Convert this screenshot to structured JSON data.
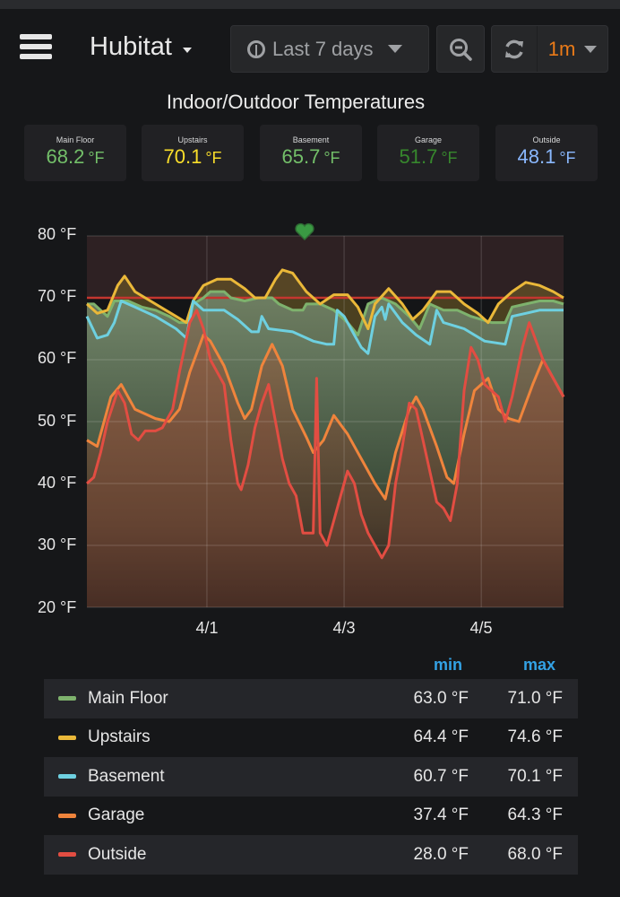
{
  "header": {
    "menu_icon": "hamburger-menu-icon",
    "dashboard_title": "Hubitat",
    "time_range": "Last 7 days",
    "time_icon": "clock-icon",
    "zoom_out_icon": "zoom-out-icon",
    "refresh_icon": "refresh-icon",
    "refresh_interval": "1m"
  },
  "panel": {
    "title": "Indoor/Outdoor Temperatures",
    "health_icon": "heart-icon"
  },
  "stats": [
    {
      "label": "Main Floor",
      "value": "68.2",
      "unit": "°F",
      "color": "#73bf69"
    },
    {
      "label": "Upstairs",
      "value": "70.1",
      "unit": "°F",
      "color": "#fade2a"
    },
    {
      "label": "Basement",
      "value": "65.7",
      "unit": "°F",
      "color": "#73bf69"
    },
    {
      "label": "Garage",
      "value": "51.7",
      "unit": "°F",
      "color": "#37872d"
    },
    {
      "label": "Outside",
      "value": "48.1",
      "unit": "°F",
      "color": "#8ab8ff"
    }
  ],
  "legend": {
    "columns": {
      "min": "min",
      "max": "max"
    },
    "rows": [
      {
        "name": "Main Floor",
        "color": "#7eb26d",
        "min": "63.0 °F",
        "max": "71.0 °F"
      },
      {
        "name": "Upstairs",
        "color": "#eab839",
        "min": "64.4 °F",
        "max": "74.6 °F"
      },
      {
        "name": "Basement",
        "color": "#6ed0e0",
        "min": "60.7 °F",
        "max": "70.1 °F"
      },
      {
        "name": "Garage",
        "color": "#ef843c",
        "min": "37.4 °F",
        "max": "64.3 °F"
      },
      {
        "name": "Outside",
        "color": "#e24d42",
        "min": "28.0 °F",
        "max": "68.0 °F"
      }
    ]
  },
  "chart_data": {
    "type": "line",
    "title": "Indoor/Outdoor Temperatures",
    "xlabel": "",
    "ylabel": "",
    "ylim": [
      20,
      80
    ],
    "y_ticks": [
      "80 °F",
      "70 °F",
      "60 °F",
      "50 °F",
      "40 °F",
      "30 °F",
      "20 °F"
    ],
    "x_ticks": [
      {
        "label": "4/1",
        "pos": 1.75
      },
      {
        "label": "4/3",
        "pos": 3.75
      },
      {
        "label": "4/5",
        "pos": 5.75
      }
    ],
    "x_range_days": [
      0,
      6.95
    ],
    "grid": true,
    "threshold": {
      "value": 70,
      "color": "#c4362f",
      "fill_above": "#2e2123"
    },
    "legend_position": "bottom",
    "series": [
      {
        "name": "Main Floor",
        "color": "#7eb26d",
        "points": [
          [
            0,
            69
          ],
          [
            0.1,
            69
          ],
          [
            0.2,
            68
          ],
          [
            0.3,
            67
          ],
          [
            0.4,
            69.5
          ],
          [
            0.6,
            69.5
          ],
          [
            0.8,
            68.5
          ],
          [
            1.0,
            68
          ],
          [
            1.2,
            67
          ],
          [
            1.35,
            66
          ],
          [
            1.45,
            66
          ],
          [
            1.55,
            69
          ],
          [
            1.7,
            70
          ],
          [
            1.8,
            71
          ],
          [
            2.0,
            71
          ],
          [
            2.1,
            70
          ],
          [
            2.3,
            69.5
          ],
          [
            2.5,
            70
          ],
          [
            2.7,
            70
          ],
          [
            2.8,
            69
          ],
          [
            3.0,
            68
          ],
          [
            3.15,
            68
          ],
          [
            3.2,
            69
          ],
          [
            3.4,
            69
          ],
          [
            3.6,
            68
          ],
          [
            3.8,
            66
          ],
          [
            3.95,
            64
          ],
          [
            4.1,
            69
          ],
          [
            4.3,
            70
          ],
          [
            4.5,
            69
          ],
          [
            4.7,
            67
          ],
          [
            4.85,
            65
          ],
          [
            5.0,
            69
          ],
          [
            5.2,
            68
          ],
          [
            5.4,
            68
          ],
          [
            5.6,
            67
          ],
          [
            5.9,
            66
          ],
          [
            6.1,
            66
          ],
          [
            6.2,
            68.5
          ],
          [
            6.4,
            69
          ],
          [
            6.6,
            69.5
          ],
          [
            6.8,
            69.5
          ],
          [
            6.95,
            69
          ]
        ]
      },
      {
        "name": "Upstairs",
        "color": "#eab839",
        "points": [
          [
            0,
            69
          ],
          [
            0.15,
            67.5
          ],
          [
            0.3,
            68
          ],
          [
            0.45,
            72
          ],
          [
            0.55,
            73.5
          ],
          [
            0.7,
            71
          ],
          [
            1.0,
            69
          ],
          [
            1.3,
            67
          ],
          [
            1.45,
            66
          ],
          [
            1.55,
            69.5
          ],
          [
            1.7,
            72
          ],
          [
            1.9,
            73
          ],
          [
            2.1,
            73
          ],
          [
            2.3,
            71.5
          ],
          [
            2.45,
            70
          ],
          [
            2.6,
            70
          ],
          [
            2.75,
            73
          ],
          [
            2.85,
            74.5
          ],
          [
            3.0,
            74
          ],
          [
            3.2,
            71
          ],
          [
            3.4,
            69
          ],
          [
            3.6,
            70.5
          ],
          [
            3.8,
            70.5
          ],
          [
            3.95,
            68.5
          ],
          [
            4.1,
            65
          ],
          [
            4.2,
            69
          ],
          [
            4.4,
            71.5
          ],
          [
            4.6,
            69
          ],
          [
            4.75,
            66.5
          ],
          [
            4.9,
            68
          ],
          [
            5.1,
            71
          ],
          [
            5.3,
            71
          ],
          [
            5.5,
            69
          ],
          [
            5.7,
            67.5
          ],
          [
            5.85,
            66
          ],
          [
            6.0,
            69
          ],
          [
            6.2,
            71
          ],
          [
            6.4,
            72.5
          ],
          [
            6.6,
            72
          ],
          [
            6.8,
            71
          ],
          [
            6.95,
            70
          ]
        ]
      },
      {
        "name": "Basement",
        "color": "#6ed0e0",
        "points": [
          [
            0,
            67
          ],
          [
            0.15,
            63.5
          ],
          [
            0.3,
            64
          ],
          [
            0.4,
            66
          ],
          [
            0.5,
            69.5
          ],
          [
            0.7,
            68.5
          ],
          [
            1.0,
            67
          ],
          [
            1.3,
            65
          ],
          [
            1.45,
            63.5
          ],
          [
            1.55,
            69.5
          ],
          [
            1.7,
            68
          ],
          [
            2.0,
            68
          ],
          [
            2.2,
            66.5
          ],
          [
            2.4,
            64.5
          ],
          [
            2.5,
            64.5
          ],
          [
            2.55,
            67
          ],
          [
            2.65,
            65
          ],
          [
            3.0,
            64.5
          ],
          [
            3.3,
            63
          ],
          [
            3.5,
            62.5
          ],
          [
            3.6,
            62.5
          ],
          [
            3.65,
            68
          ],
          [
            3.75,
            67
          ],
          [
            3.9,
            64
          ],
          [
            4.0,
            62
          ],
          [
            4.1,
            61
          ],
          [
            4.2,
            67
          ],
          [
            4.3,
            68.5
          ],
          [
            4.35,
            66.5
          ],
          [
            4.4,
            69
          ],
          [
            4.6,
            66
          ],
          [
            4.8,
            64
          ],
          [
            5.0,
            62.5
          ],
          [
            5.1,
            68
          ],
          [
            5.2,
            66
          ],
          [
            5.5,
            65
          ],
          [
            5.8,
            63
          ],
          [
            6.1,
            62.5
          ],
          [
            6.2,
            67
          ],
          [
            6.4,
            67.5
          ],
          [
            6.6,
            68
          ],
          [
            6.8,
            68
          ],
          [
            6.95,
            68
          ]
        ]
      },
      {
        "name": "Garage",
        "color": "#ef843c",
        "points": [
          [
            0,
            47
          ],
          [
            0.15,
            46
          ],
          [
            0.35,
            54
          ],
          [
            0.5,
            56
          ],
          [
            0.7,
            52
          ],
          [
            1.0,
            50.5
          ],
          [
            1.2,
            50
          ],
          [
            1.35,
            52
          ],
          [
            1.5,
            58
          ],
          [
            1.7,
            64
          ],
          [
            1.8,
            63
          ],
          [
            2.0,
            59
          ],
          [
            2.2,
            53
          ],
          [
            2.3,
            50.5
          ],
          [
            2.4,
            52
          ],
          [
            2.55,
            59
          ],
          [
            2.7,
            62.5
          ],
          [
            2.85,
            59
          ],
          [
            3.0,
            52
          ],
          [
            3.2,
            47.5
          ],
          [
            3.3,
            45
          ],
          [
            3.45,
            47
          ],
          [
            3.6,
            51
          ],
          [
            3.8,
            48
          ],
          [
            4.0,
            44
          ],
          [
            4.2,
            40
          ],
          [
            4.35,
            37.5
          ],
          [
            4.5,
            45
          ],
          [
            4.7,
            52
          ],
          [
            4.8,
            54
          ],
          [
            4.9,
            52
          ],
          [
            5.1,
            46
          ],
          [
            5.25,
            41
          ],
          [
            5.35,
            40
          ],
          [
            5.5,
            48
          ],
          [
            5.65,
            55
          ],
          [
            5.85,
            57
          ],
          [
            6.0,
            52
          ],
          [
            6.15,
            50.5
          ],
          [
            6.3,
            50
          ],
          [
            6.5,
            56
          ],
          [
            6.65,
            60
          ],
          [
            6.8,
            57
          ],
          [
            6.95,
            54
          ]
        ]
      },
      {
        "name": "Outside",
        "color": "#e24d42",
        "points": [
          [
            0,
            40
          ],
          [
            0.1,
            41
          ],
          [
            0.2,
            45
          ],
          [
            0.3,
            50
          ],
          [
            0.45,
            55
          ],
          [
            0.55,
            53
          ],
          [
            0.65,
            48
          ],
          [
            0.75,
            47
          ],
          [
            0.85,
            48.5
          ],
          [
            1.0,
            48.5
          ],
          [
            1.1,
            49
          ],
          [
            1.25,
            52
          ],
          [
            1.35,
            58
          ],
          [
            1.5,
            66
          ],
          [
            1.6,
            68
          ],
          [
            1.7,
            65
          ],
          [
            1.8,
            60
          ],
          [
            1.9,
            58
          ],
          [
            2.0,
            56
          ],
          [
            2.1,
            47
          ],
          [
            2.2,
            40
          ],
          [
            2.25,
            39
          ],
          [
            2.35,
            43
          ],
          [
            2.45,
            49
          ],
          [
            2.55,
            53
          ],
          [
            2.65,
            56
          ],
          [
            2.75,
            50
          ],
          [
            2.85,
            44
          ],
          [
            2.95,
            40
          ],
          [
            3.05,
            38
          ],
          [
            3.15,
            32
          ],
          [
            3.3,
            32
          ],
          [
            3.35,
            57
          ],
          [
            3.4,
            32
          ],
          [
            3.5,
            30
          ],
          [
            3.6,
            34
          ],
          [
            3.7,
            38
          ],
          [
            3.8,
            42
          ],
          [
            3.9,
            40
          ],
          [
            4.0,
            35
          ],
          [
            4.1,
            32
          ],
          [
            4.2,
            30
          ],
          [
            4.3,
            28
          ],
          [
            4.4,
            30
          ],
          [
            4.5,
            40
          ],
          [
            4.6,
            46
          ],
          [
            4.7,
            53
          ],
          [
            4.8,
            52
          ],
          [
            4.9,
            47
          ],
          [
            5.0,
            42
          ],
          [
            5.1,
            37
          ],
          [
            5.2,
            36
          ],
          [
            5.3,
            34
          ],
          [
            5.4,
            40
          ],
          [
            5.5,
            55
          ],
          [
            5.6,
            62
          ],
          [
            5.7,
            60
          ],
          [
            5.8,
            56
          ],
          [
            5.9,
            55
          ],
          [
            6.0,
            54
          ],
          [
            6.1,
            50
          ],
          [
            6.2,
            54
          ],
          [
            6.35,
            62
          ],
          [
            6.45,
            66
          ],
          [
            6.55,
            63
          ],
          [
            6.65,
            60
          ],
          [
            6.75,
            58
          ],
          [
            6.85,
            56
          ],
          [
            6.95,
            54
          ]
        ]
      }
    ]
  }
}
